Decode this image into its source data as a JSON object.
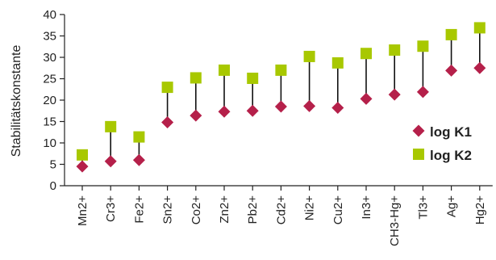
{
  "chart_data": {
    "type": "scatter",
    "title": "",
    "xlabel": "",
    "ylabel": "Stabilitätskonstante",
    "ylim": [
      0,
      40
    ],
    "yticks": [
      0,
      5,
      10,
      15,
      20,
      25,
      30,
      35,
      40
    ],
    "grid": false,
    "legend_position": "right",
    "categories": [
      "Mn2+",
      "Cr3+",
      "Fe2+",
      "Sn2+",
      "Co2+",
      "Zn2+",
      "Pb2+",
      "Cd2+",
      "Ni2+",
      "Cu2+",
      "In3+",
      "CH3-Hg+",
      "Tl3+",
      "Ag+",
      "Hg2+"
    ],
    "series": [
      {
        "name": "log K1",
        "marker": "diamond",
        "color": "#b5204a",
        "values": [
          4.5,
          5.7,
          6.0,
          14.8,
          16.4,
          17.3,
          17.5,
          18.5,
          18.6,
          18.2,
          20.3,
          21.3,
          21.9,
          26.9,
          27.5
        ]
      },
      {
        "name": "log K2",
        "marker": "square",
        "color": "#a8c800",
        "values": [
          7.2,
          13.8,
          11.4,
          23.0,
          25.2,
          27.0,
          25.1,
          27.0,
          30.2,
          28.7,
          30.9,
          31.7,
          32.6,
          35.3,
          36.9
        ]
      }
    ],
    "connector_color": "#111111"
  }
}
